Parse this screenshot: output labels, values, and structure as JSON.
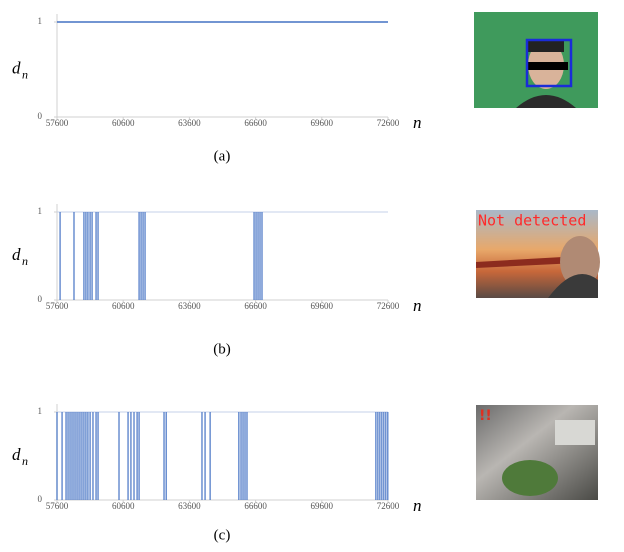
{
  "chart_data": [
    {
      "type": "line",
      "caption": "(a)",
      "ylabel": "d",
      "ylabel_sub": "n",
      "xlabel": "n",
      "x": [
        57600,
        72600
      ],
      "values": [
        1,
        1
      ],
      "color": "#4472c4",
      "xlim": [
        57600,
        72600
      ],
      "xticks": [
        57600,
        60600,
        63600,
        66600,
        69600,
        72600
      ],
      "ylim": [
        0,
        1
      ],
      "yticks": [
        0,
        1
      ]
    },
    {
      "type": "spike",
      "caption": "(b)",
      "ylabel": "d",
      "ylabel_sub": "n",
      "xlabel": "n",
      "x": [
        57740,
        58370,
        58820,
        58910,
        59000,
        59100,
        59190,
        59370,
        59460,
        61320,
        61410,
        61500,
        61590,
        66530,
        66620,
        66710,
        66800,
        66890
      ],
      "values": [
        0,
        0,
        0,
        0,
        0,
        0,
        0,
        0,
        0,
        0,
        0,
        0,
        0,
        0,
        0,
        0,
        0,
        0
      ],
      "color": "#4472c4",
      "xlim": [
        57600,
        72600
      ],
      "xticks": [
        57600,
        60600,
        63600,
        66600,
        69600,
        72600
      ],
      "ylim": [
        0,
        1
      ],
      "yticks": [
        0,
        1
      ]
    },
    {
      "type": "spike",
      "caption": "(c)",
      "ylabel": "d",
      "ylabel_sub": "n",
      "xlabel": "n",
      "x": [
        57600,
        57830,
        58010,
        58100,
        58190,
        58280,
        58370,
        58460,
        58550,
        58640,
        58730,
        58820,
        58910,
        59000,
        59100,
        59230,
        59370,
        59460,
        60410,
        60820,
        60950,
        61090,
        61230,
        61320,
        62450,
        62550,
        64170,
        64310,
        64540,
        65840,
        65940,
        66030,
        66120,
        66210,
        72050,
        72140,
        72230,
        72320,
        72410,
        72500,
        72590
      ],
      "values": [
        0,
        0,
        0,
        0,
        0,
        0,
        0,
        0,
        0,
        0,
        0,
        0,
        0,
        0,
        0,
        0,
        0,
        0,
        0,
        0,
        0,
        0,
        0,
        0,
        0,
        0,
        0,
        0,
        0,
        0,
        0,
        0,
        0,
        0,
        0,
        0,
        0,
        0,
        0,
        0,
        0
      ],
      "color": "#4472c4",
      "xlim": [
        57600,
        72600
      ],
      "xticks": [
        57600,
        60600,
        63600,
        66600,
        69600,
        72600
      ],
      "ylim": [
        0,
        1
      ],
      "yticks": [
        0,
        1
      ]
    }
  ],
  "photos": [
    {
      "overlay": "Not detected"
    },
    {
      "overlay": "!!"
    }
  ]
}
